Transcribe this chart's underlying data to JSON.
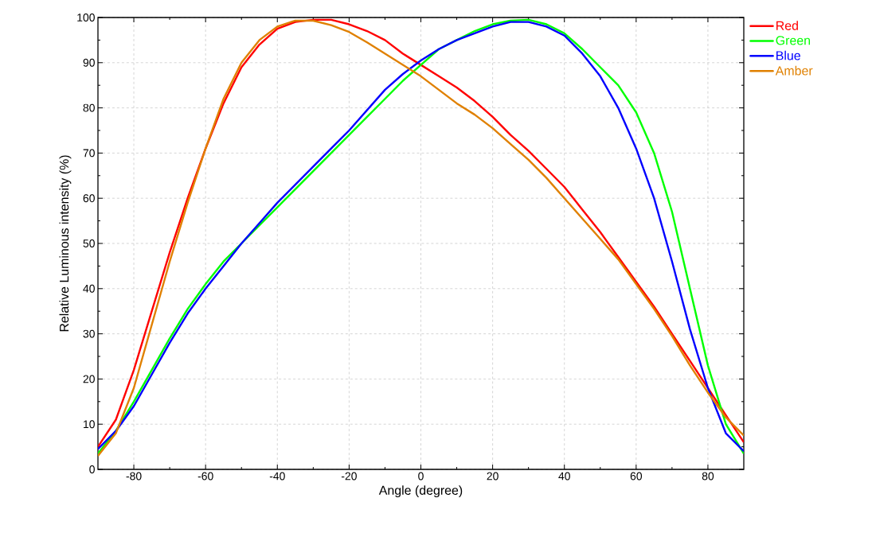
{
  "chart_data": {
    "type": "line",
    "xlabel": "Angle (degree)",
    "ylabel": "Relative Luminous intensity (%)",
    "x": [
      -90,
      -85,
      -80,
      -75,
      -70,
      -65,
      -60,
      -55,
      -50,
      -45,
      -40,
      -35,
      -30,
      -25,
      -20,
      -15,
      -10,
      -5,
      0,
      5,
      10,
      15,
      20,
      25,
      30,
      35,
      40,
      45,
      50,
      55,
      60,
      65,
      70,
      75,
      80,
      85,
      90
    ],
    "series": [
      {
        "name": "Red",
        "color": "#ff0000",
        "values": [
          5,
          11,
          22,
          35,
          48,
          60,
          71,
          81,
          89,
          94,
          97.5,
          99,
          99.5,
          99.5,
          98.5,
          97,
          95,
          92,
          89.5,
          87,
          84.5,
          81.5,
          78,
          74,
          70.5,
          66.5,
          62.5,
          57.5,
          52.5,
          47,
          41.5,
          36,
          30,
          24,
          18,
          12,
          6
        ]
      },
      {
        "name": "Green",
        "color": "#00ff00",
        "values": [
          3.5,
          8.5,
          15,
          22,
          29,
          35.5,
          41,
          46,
          50,
          54,
          58,
          62,
          66,
          70,
          74,
          78,
          82,
          86,
          89.5,
          93,
          95,
          97,
          98.5,
          99.3,
          99.5,
          98.5,
          96.5,
          93,
          89,
          85,
          79,
          70,
          57,
          40,
          23,
          10,
          3.5
        ]
      },
      {
        "name": "Blue",
        "color": "#0000ff",
        "values": [
          4.5,
          8.5,
          14,
          21,
          28,
          34.5,
          40,
          45,
          50,
          54.5,
          59,
          63,
          67,
          71,
          75,
          79.5,
          84,
          87.5,
          90.5,
          93,
          95,
          96.5,
          98,
          99,
          99,
          98,
          96,
          92,
          87,
          80,
          71,
          60,
          46,
          31,
          18,
          8,
          4
        ]
      },
      {
        "name": "Amber",
        "color": "#e08000",
        "values": [
          3,
          8,
          18,
          32,
          46,
          59,
          71,
          82,
          90,
          95,
          98,
          99.3,
          99.3,
          98.3,
          96.8,
          94.5,
          92,
          89.5,
          87,
          84,
          81,
          78.5,
          75.5,
          72,
          68.5,
          64.5,
          60,
          55.5,
          51,
          46.5,
          41,
          35.5,
          29.5,
          23,
          17,
          11.5,
          7.5
        ]
      }
    ],
    "xlim": [
      -90,
      90
    ],
    "ylim": [
      0,
      100
    ],
    "xticks": [
      -80,
      -60,
      -40,
      -20,
      0,
      20,
      40,
      60,
      80
    ],
    "yticks": [
      0,
      10,
      20,
      30,
      40,
      50,
      60,
      70,
      80,
      90,
      100
    ],
    "grid": true,
    "legend": "top right",
    "marker": "none",
    "line_style": "solid"
  }
}
